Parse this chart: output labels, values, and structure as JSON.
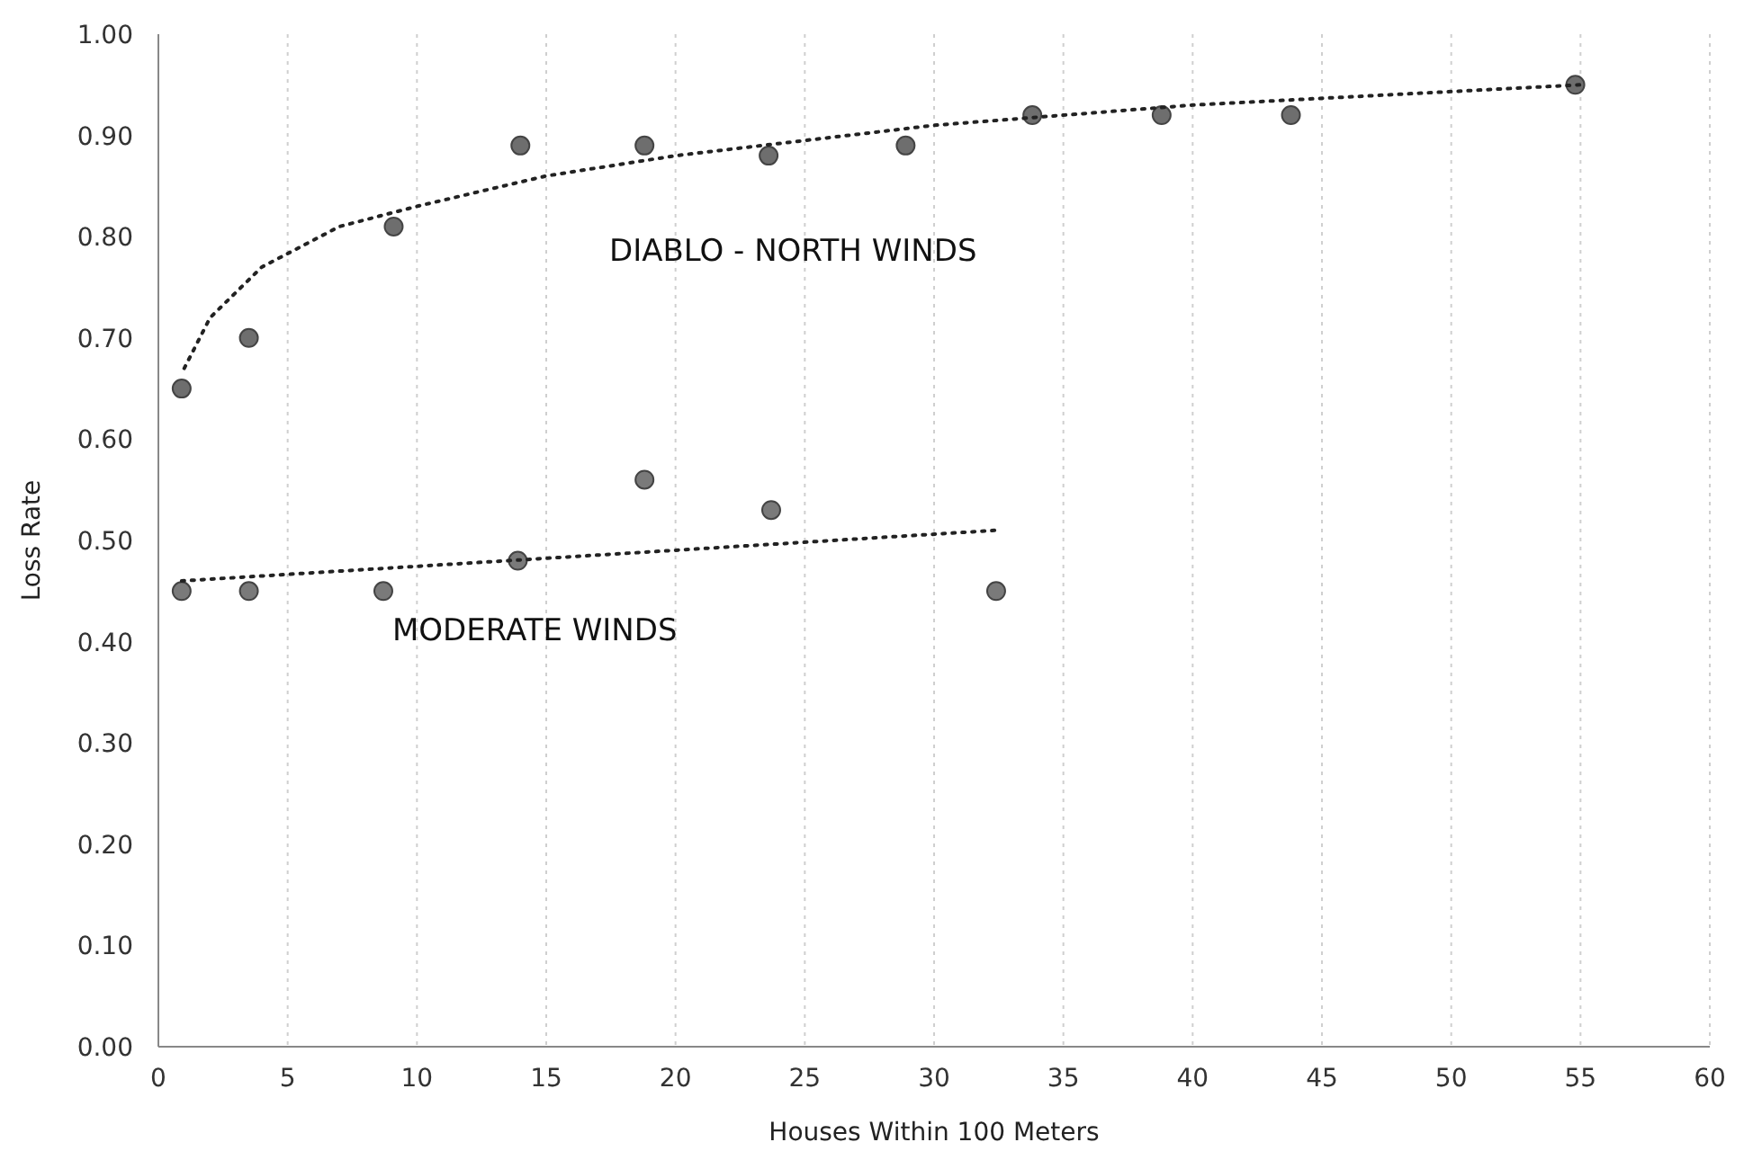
{
  "chart_data": {
    "type": "scatter",
    "xlabel": "Houses Within 100 Meters",
    "ylabel": "Loss Rate",
    "xlim": [
      0,
      60
    ],
    "xticks": [
      0,
      5,
      10,
      15,
      20,
      25,
      30,
      35,
      40,
      45,
      50,
      55,
      60
    ],
    "ylim": [
      0,
      1
    ],
    "yticks": [
      {
        "value": 0,
        "label": "0.00"
      },
      {
        "value": 0.1,
        "label": "0.10"
      },
      {
        "value": 0.2,
        "label": "0.20"
      },
      {
        "value": 0.3,
        "label": "0.30"
      },
      {
        "value": 0.4,
        "label": "0.40"
      },
      {
        "value": 0.5,
        "label": "0.50"
      },
      {
        "value": 0.6,
        "label": "0.60"
      },
      {
        "value": 0.7,
        "label": "0.70"
      },
      {
        "value": 0.8,
        "label": "0.80"
      },
      {
        "value": 0.9,
        "label": "0.90"
      },
      {
        "value": 1,
        "label": "1.00"
      }
    ],
    "grid": "x",
    "marker": "circle",
    "series": [
      {
        "name": "DIABLO - NORTH WINDS",
        "color": "#6e6e6e",
        "x": [
          0.9,
          3.5,
          9.1,
          14.0,
          18.8,
          23.6,
          28.9,
          33.8,
          38.8,
          43.8,
          54.8
        ],
        "values": [
          0.65,
          0.7,
          0.81,
          0.89,
          0.89,
          0.88,
          0.89,
          0.92,
          0.92,
          0.92,
          0.95
        ]
      },
      {
        "name": "MODERATE WINDS",
        "color": "#7a7a7a",
        "x": [
          0.9,
          3.5,
          8.7,
          13.9,
          18.8,
          23.7,
          32.4
        ],
        "values": [
          0.45,
          0.45,
          0.45,
          0.48,
          0.56,
          0.53,
          0.45
        ]
      },
      {
        "type": "line",
        "line_style": "dotted",
        "marker": "none",
        "color": "#222222",
        "x": [
          1,
          2,
          4,
          7,
          10,
          15,
          20,
          30,
          40,
          55
        ],
        "values": [
          0.67,
          0.72,
          0.77,
          0.81,
          0.83,
          0.86,
          0.88,
          0.91,
          0.93,
          0.95
        ]
      },
      {
        "type": "line",
        "line_style": "dotted",
        "marker": "none",
        "color": "#222222",
        "x": [
          0.9,
          32.4
        ],
        "values": [
          0.46,
          0.51
        ]
      }
    ]
  }
}
